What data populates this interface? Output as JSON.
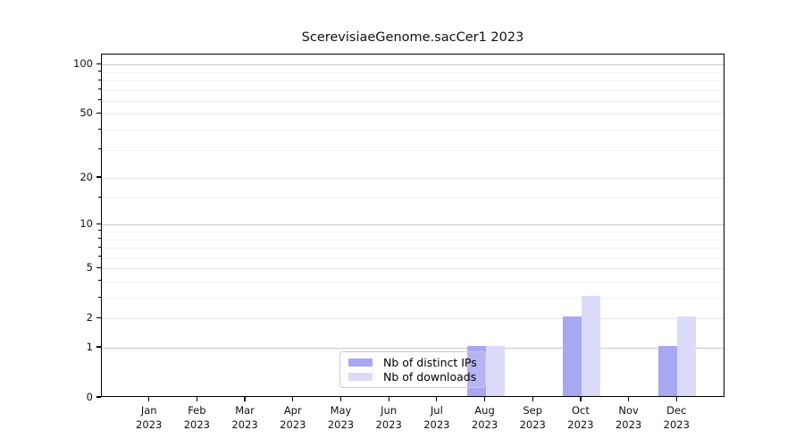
{
  "title": "ScerevisiaeGenome.sacCer1 2023",
  "colors": {
    "background": "#ffffff",
    "axis": "#000000",
    "grid_strong": "#c9c9c9",
    "grid_medium": "#e4e4e4",
    "grid_faint": "#f2f2f2",
    "legend_border": "#cccccc",
    "bar_distinct_ips": "#a8a8f2",
    "bar_downloads": "#dbdbf9"
  },
  "chart_data": {
    "type": "bar",
    "title": "ScerevisiaeGenome.sacCer1 2023",
    "categories": [
      "Jan 2023",
      "Feb 2023",
      "Mar 2023",
      "Apr 2023",
      "May 2023",
      "Jun 2023",
      "Jul 2023",
      "Aug 2023",
      "Sep 2023",
      "Oct 2023",
      "Nov 2023",
      "Dec 2023"
    ],
    "series": [
      {
        "name": "Nb of distinct IPs",
        "color": "#a8a8f2",
        "values": [
          0,
          0,
          0,
          0,
          0,
          0,
          0,
          1,
          0,
          2,
          0,
          1
        ]
      },
      {
        "name": "Nb of downloads",
        "color": "#dbdbf9",
        "values": [
          0,
          0,
          0,
          0,
          0,
          0,
          0,
          1,
          0,
          3,
          0,
          2
        ]
      }
    ],
    "xlabel": "",
    "ylabel": "",
    "yscale": "log1p",
    "ylim": [
      0,
      115
    ],
    "yticks": [
      0,
      1,
      2,
      5,
      10,
      20,
      50,
      100
    ],
    "gridlines": {
      "strong": [
        1,
        10,
        100
      ],
      "medium": [
        2,
        5,
        20,
        50
      ],
      "faint": [
        3,
        4,
        6,
        7,
        8,
        9,
        15,
        30,
        40,
        60,
        70,
        80,
        90
      ]
    },
    "grid": true,
    "legend_position": "lower center"
  }
}
